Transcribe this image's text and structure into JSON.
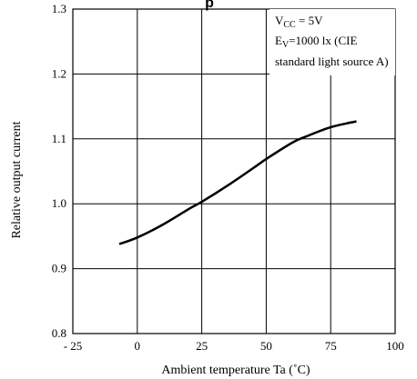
{
  "chart_data": {
    "type": "line",
    "title_fragment": "p",
    "xlabel": "Ambient temperature Ta (˚C)",
    "ylabel": "Relative output current",
    "xlim": [
      -25,
      100
    ],
    "ylim": [
      0.8,
      1.3
    ],
    "x_ticks": [
      -25,
      0,
      25,
      50,
      75,
      100
    ],
    "x_tick_labels": [
      "- 25",
      "0",
      "25",
      "50",
      "75",
      "100"
    ],
    "y_ticks": [
      0.8,
      0.9,
      1.0,
      1.1,
      1.2,
      1.3
    ],
    "y_tick_labels": [
      "0.8",
      "0.9",
      "1.0",
      "1.1",
      "1.2",
      "1.3"
    ],
    "grid": true,
    "annotation": {
      "vcc_main": "V",
      "vcc_sub": "CC",
      "vcc_rest": " = 5V",
      "ev_main": "E",
      "ev_sub": "V",
      "ev_rest": "=1000 lx (CIE",
      "line3": "standard light source A)"
    },
    "series": [
      {
        "x": [
          -7,
          0,
          10,
          20,
          25,
          35,
          45,
          50,
          60,
          65,
          75,
          85
        ],
        "y": [
          0.938,
          0.948,
          0.968,
          0.992,
          1.003,
          1.028,
          1.055,
          1.069,
          1.094,
          1.103,
          1.118,
          1.127
        ]
      }
    ]
  }
}
